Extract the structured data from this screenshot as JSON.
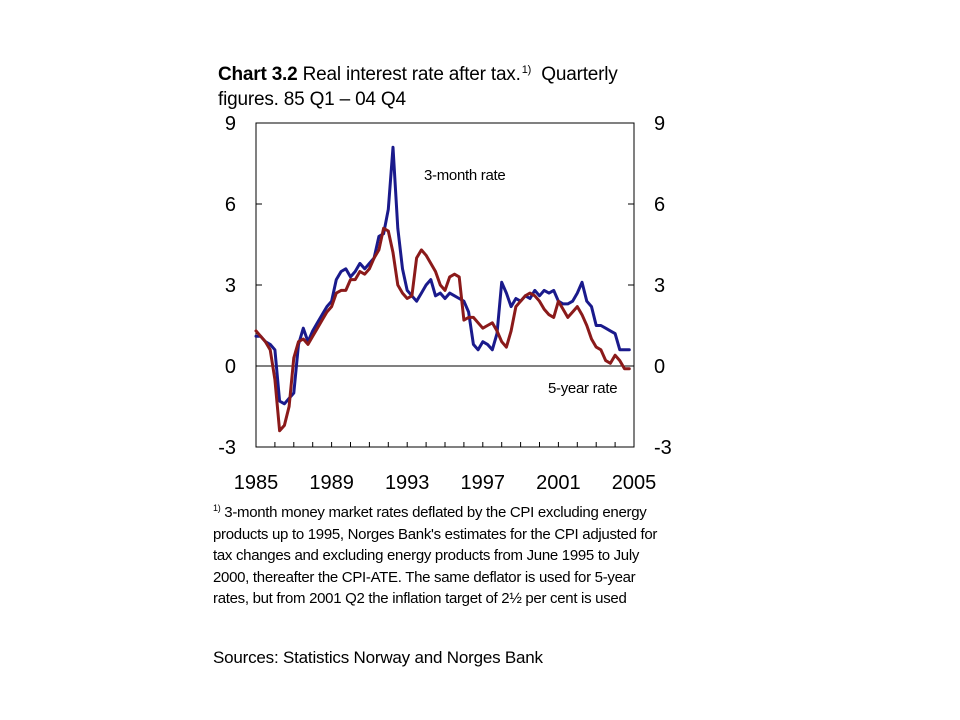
{
  "title": {
    "bold": "Chart 3.2",
    "line1_text": "Real interest rate after tax.",
    "sup": "1)",
    "line1_end": "Quarterly",
    "line2": "figures. 85 Q1 – 04 Q4"
  },
  "footnote": {
    "marker": "1)",
    "text": "3-month money market rates deflated by the CPI excluding energy products up to 1995, Norges Bank's estimates for the CPI adjusted for tax changes and excluding energy products from June 1995 to July 2000, thereafter the CPI-ATE.  The same deflator is used for 5-year rates, but from 2001 Q2 the inflation target of 2½ per cent is used"
  },
  "sources": "Sources: Statistics Norway and Norges Bank",
  "chart_data": {
    "type": "line",
    "xlim": [
      1985,
      2005
    ],
    "ylim": [
      -3,
      9
    ],
    "x_ticks": [
      1985,
      1989,
      1993,
      1997,
      2001,
      2005
    ],
    "x_tick_labels": [
      "1985",
      "1989",
      "1993",
      "1997",
      "2001",
      "2005"
    ],
    "y_ticks": [
      -3,
      0,
      3,
      6,
      9
    ],
    "y_tick_labels": [
      "-3",
      "0",
      "3",
      "6",
      "9"
    ],
    "right_axis": true,
    "grid": false,
    "zero_line": true,
    "annotations": [
      "3-month rate",
      "5-year rate"
    ],
    "series": [
      {
        "name": "3-month rate",
        "color": "#1a1a8c",
        "x": [
          1985.0,
          1985.25,
          1985.5,
          1985.75,
          1986.0,
          1986.25,
          1986.5,
          1986.75,
          1987.0,
          1987.25,
          1987.5,
          1987.75,
          1988.0,
          1988.25,
          1988.5,
          1988.75,
          1989.0,
          1989.25,
          1989.5,
          1989.75,
          1990.0,
          1990.25,
          1990.5,
          1990.75,
          1991.0,
          1991.25,
          1991.5,
          1991.75,
          1992.0,
          1992.25,
          1992.5,
          1992.75,
          1993.0,
          1993.25,
          1993.5,
          1993.75,
          1994.0,
          1994.25,
          1994.5,
          1994.75,
          1995.0,
          1995.25,
          1995.5,
          1995.75,
          1996.0,
          1996.25,
          1996.5,
          1996.75,
          1997.0,
          1997.25,
          1997.5,
          1997.75,
          1998.0,
          1998.25,
          1998.5,
          1998.75,
          1999.0,
          1999.25,
          1999.5,
          1999.75,
          2000.0,
          2000.25,
          2000.5,
          2000.75,
          2001.0,
          2001.25,
          2001.5,
          2001.75,
          2002.0,
          2002.25,
          2002.5,
          2002.75,
          2003.0,
          2003.25,
          2003.5,
          2003.75,
          2004.0,
          2004.25,
          2004.5,
          2004.75
        ],
        "values": [
          1.1,
          1.1,
          0.9,
          0.8,
          0.6,
          -1.3,
          -1.4,
          -1.2,
          -1.0,
          0.8,
          1.4,
          0.9,
          1.3,
          1.6,
          1.9,
          2.2,
          2.4,
          3.2,
          3.5,
          3.6,
          3.3,
          3.5,
          3.8,
          3.6,
          3.8,
          4.0,
          4.8,
          4.9,
          5.8,
          8.1,
          5.1,
          3.6,
          2.8,
          2.6,
          2.4,
          2.7,
          3.0,
          3.2,
          2.6,
          2.7,
          2.5,
          2.7,
          2.6,
          2.5,
          2.4,
          2.0,
          0.8,
          0.6,
          0.9,
          0.8,
          0.6,
          1.2,
          3.1,
          2.7,
          2.2,
          2.5,
          2.4,
          2.6,
          2.5,
          2.8,
          2.6,
          2.8,
          2.7,
          2.8,
          2.4,
          2.3,
          2.3,
          2.4,
          2.7,
          3.1,
          2.4,
          2.2,
          1.5,
          1.5,
          1.4,
          1.3,
          1.2,
          0.6,
          0.6,
          0.6
        ]
      },
      {
        "name": "5-year rate",
        "color": "#8b1a1a",
        "x": [
          1985.0,
          1985.25,
          1985.5,
          1985.75,
          1986.0,
          1986.25,
          1986.5,
          1986.75,
          1987.0,
          1987.25,
          1987.5,
          1987.75,
          1988.0,
          1988.25,
          1988.5,
          1988.75,
          1989.0,
          1989.25,
          1989.5,
          1989.75,
          1990.0,
          1990.25,
          1990.5,
          1990.75,
          1991.0,
          1991.25,
          1991.5,
          1991.75,
          1992.0,
          1992.25,
          1992.5,
          1992.75,
          1993.0,
          1993.25,
          1993.5,
          1993.75,
          1994.0,
          1994.25,
          1994.5,
          1994.75,
          1995.0,
          1995.25,
          1995.5,
          1995.75,
          1996.0,
          1996.25,
          1996.5,
          1996.75,
          1997.0,
          1997.25,
          1997.5,
          1997.75,
          1998.0,
          1998.25,
          1998.5,
          1998.75,
          1999.0,
          1999.25,
          1999.5,
          1999.75,
          2000.0,
          2000.25,
          2000.5,
          2000.75,
          2001.0,
          2001.25,
          2001.5,
          2001.75,
          2002.0,
          2002.25,
          2002.5,
          2002.75,
          2003.0,
          2003.25,
          2003.5,
          2003.75,
          2004.0,
          2004.25,
          2004.5,
          2004.75
        ],
        "values": [
          1.3,
          1.1,
          0.9,
          0.6,
          -0.5,
          -2.4,
          -2.2,
          -1.5,
          0.3,
          0.9,
          1.0,
          0.8,
          1.1,
          1.4,
          1.7,
          2.0,
          2.2,
          2.7,
          2.8,
          2.8,
          3.2,
          3.2,
          3.5,
          3.4,
          3.6,
          4.0,
          4.3,
          5.1,
          5.0,
          4.2,
          3.0,
          2.7,
          2.5,
          2.6,
          4.0,
          4.3,
          4.1,
          3.8,
          3.5,
          3.0,
          2.8,
          3.3,
          3.4,
          3.3,
          1.7,
          1.8,
          1.8,
          1.6,
          1.4,
          1.5,
          1.6,
          1.3,
          0.9,
          0.7,
          1.3,
          2.2,
          2.4,
          2.6,
          2.7,
          2.6,
          2.4,
          2.1,
          1.9,
          1.8,
          2.4,
          2.1,
          1.8,
          2.0,
          2.2,
          1.9,
          1.5,
          1.0,
          0.7,
          0.6,
          0.2,
          0.1,
          0.4,
          0.2,
          -0.1,
          -0.1
        ]
      }
    ]
  }
}
